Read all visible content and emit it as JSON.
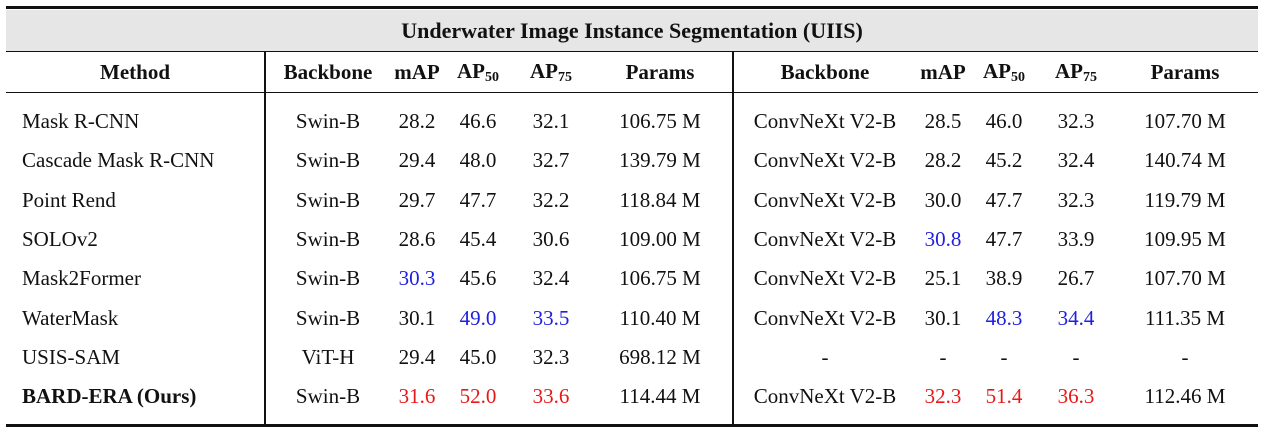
{
  "title": "Underwater Image Instance Segmentation (UIIS)",
  "headers": {
    "method": "Method",
    "backbone": "Backbone",
    "map": "mAP",
    "ap_prefix": "AP",
    "ap50_sub": "50",
    "ap75_sub": "75",
    "params": "Params"
  },
  "colors": {
    "second_best": "#2020e0",
    "best": "#e81818"
  },
  "rows": [
    {
      "method": "Mask R-CNN",
      "left": {
        "backbone": "Swin-B",
        "map": "28.2",
        "ap50": "46.6",
        "ap75": "32.1",
        "params": "106.75 M"
      },
      "right": {
        "backbone": "ConvNeXt V2-B",
        "map": "28.5",
        "ap50": "46.0",
        "ap75": "32.3",
        "params": "107.70 M"
      }
    },
    {
      "method": "Cascade Mask R-CNN",
      "left": {
        "backbone": "Swin-B",
        "map": "29.4",
        "ap50": "48.0",
        "ap75": "32.7",
        "params": "139.79 M"
      },
      "right": {
        "backbone": "ConvNeXt V2-B",
        "map": "28.2",
        "ap50": "45.2",
        "ap75": "32.4",
        "params": "140.74 M"
      }
    },
    {
      "method": "Point Rend",
      "left": {
        "backbone": "Swin-B",
        "map": "29.7",
        "ap50": "47.7",
        "ap75": "32.2",
        "params": "118.84 M"
      },
      "right": {
        "backbone": "ConvNeXt V2-B",
        "map": "30.0",
        "ap50": "47.7",
        "ap75": "32.3",
        "params": "119.79 M"
      }
    },
    {
      "method": "SOLOv2",
      "left": {
        "backbone": "Swin-B",
        "map": "28.6",
        "ap50": "45.4",
        "ap75": "30.6",
        "params": "109.00 M"
      },
      "right": {
        "backbone": "ConvNeXt V2-B",
        "map": "30.8",
        "ap50": "47.7",
        "ap75": "33.9",
        "params": "109.95 M"
      }
    },
    {
      "method": "Mask2Former",
      "left": {
        "backbone": "Swin-B",
        "map": "30.3",
        "ap50": "45.6",
        "ap75": "32.4",
        "params": "106.75 M"
      },
      "right": {
        "backbone": "ConvNeXt V2-B",
        "map": "25.1",
        "ap50": "38.9",
        "ap75": "26.7",
        "params": "107.70 M"
      }
    },
    {
      "method": "WaterMask",
      "left": {
        "backbone": "Swin-B",
        "map": "30.1",
        "ap50": "49.0",
        "ap75": "33.5",
        "params": "110.40 M"
      },
      "right": {
        "backbone": "ConvNeXt V2-B",
        "map": "30.1",
        "ap50": "48.3",
        "ap75": "34.4",
        "params": "111.35 M"
      }
    },
    {
      "method": "USIS-SAM",
      "left": {
        "backbone": "ViT-H",
        "map": "29.4",
        "ap50": "45.0",
        "ap75": "32.3",
        "params": "698.12 M"
      },
      "right": {
        "backbone": "-",
        "map": "-",
        "ap50": "-",
        "ap75": "-",
        "params": "-"
      }
    },
    {
      "method": "BARD-ERA (Ours)",
      "left": {
        "backbone": "Swin-B",
        "map": "31.6",
        "ap50": "52.0",
        "ap75": "33.6",
        "params": "114.44 M"
      },
      "right": {
        "backbone": "ConvNeXt V2-B",
        "map": "32.3",
        "ap50": "51.4",
        "ap75": "36.3",
        "params": "112.46 M"
      }
    }
  ]
}
